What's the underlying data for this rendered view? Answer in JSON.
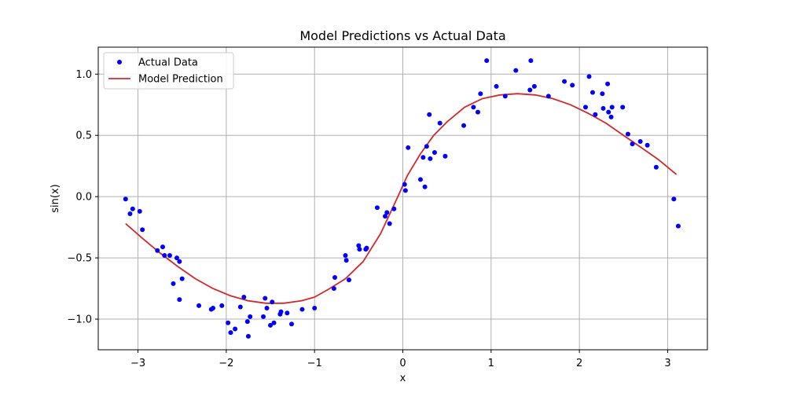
{
  "chart_data": {
    "type": "scatter",
    "title": "Model Predictions vs Actual Data",
    "xlabel": "x",
    "ylabel": "sin(x)",
    "xlim": [
      -3.45,
      3.45
    ],
    "ylim": [
      -1.25,
      1.22
    ],
    "xticks": [
      -3,
      -2,
      -1,
      0,
      1,
      2,
      3
    ],
    "xtick_labels": [
      "−3",
      "−2",
      "−1",
      "0",
      "1",
      "2",
      "3"
    ],
    "yticks": [
      -1.0,
      -0.5,
      0.0,
      0.5,
      1.0
    ],
    "ytick_labels": [
      "−1.0",
      "−0.5",
      "0.0",
      "0.5",
      "1.0"
    ],
    "grid": true,
    "legend_position": "top-left",
    "colors": {
      "actual": "#0000ff",
      "model": "#d62728",
      "grid": "#b0b0b0",
      "axes": "#000000"
    },
    "series": [
      {
        "name": "Actual Data",
        "kind": "scatter",
        "x": [
          -3.14,
          -3.09,
          -3.06,
          -2.98,
          -2.95,
          -2.78,
          -2.72,
          -2.7,
          -2.64,
          -2.6,
          -2.56,
          -2.53,
          -2.53,
          -2.5,
          -2.31,
          -2.17,
          -2.15,
          -2.05,
          -1.98,
          -1.95,
          -1.9,
          -1.84,
          -1.8,
          -1.76,
          -1.75,
          -1.73,
          -1.58,
          -1.56,
          -1.54,
          -1.5,
          -1.48,
          -1.46,
          -1.39,
          -1.38,
          -1.31,
          -1.26,
          -1.14,
          -1.0,
          -0.78,
          -0.77,
          -0.65,
          -0.64,
          -0.61,
          -0.5,
          -0.49,
          -0.42,
          -0.41,
          -0.29,
          -0.2,
          -0.18,
          -0.15,
          -0.1,
          0.02,
          0.03,
          0.06,
          0.2,
          0.23,
          0.25,
          0.27,
          0.3,
          0.31,
          0.36,
          0.42,
          0.48,
          0.69,
          0.8,
          0.85,
          0.88,
          0.95,
          1.06,
          1.16,
          1.28,
          1.44,
          1.45,
          1.49,
          1.65,
          1.83,
          1.92,
          2.07,
          2.11,
          2.15,
          2.18,
          2.26,
          2.27,
          2.32,
          2.33,
          2.36,
          2.37,
          2.49,
          2.55,
          2.6,
          2.69,
          2.77,
          2.87,
          3.07,
          3.12
        ],
        "y": [
          -0.02,
          -0.14,
          -0.1,
          -0.12,
          -0.27,
          -0.44,
          -0.41,
          -0.48,
          -0.48,
          -0.71,
          -0.5,
          -0.53,
          -0.84,
          -0.67,
          -0.89,
          -0.92,
          -0.91,
          -0.89,
          -1.03,
          -1.11,
          -1.08,
          -0.9,
          -0.82,
          -1.02,
          -1.14,
          -0.98,
          -0.98,
          -0.83,
          -0.91,
          -1.05,
          -0.86,
          -1.03,
          -0.96,
          -0.94,
          -0.95,
          -1.04,
          -0.92,
          -0.91,
          -0.75,
          -0.66,
          -0.48,
          -0.52,
          -0.68,
          -0.4,
          -0.43,
          -0.43,
          -0.42,
          -0.09,
          -0.16,
          -0.13,
          -0.22,
          -0.1,
          0.1,
          0.05,
          0.4,
          0.14,
          0.32,
          0.08,
          0.41,
          0.67,
          0.31,
          0.36,
          0.6,
          0.33,
          0.58,
          0.73,
          0.69,
          0.84,
          1.11,
          0.9,
          0.82,
          1.03,
          0.87,
          1.11,
          0.9,
          0.82,
          0.94,
          0.91,
          0.73,
          0.98,
          0.85,
          0.67,
          0.84,
          0.72,
          0.92,
          0.69,
          0.65,
          0.73,
          0.73,
          0.51,
          0.43,
          0.45,
          0.42,
          0.24,
          -0.02,
          -0.24
        ]
      },
      {
        "name": "Model Prediction",
        "kind": "line",
        "x": [
          -3.14,
          -2.95,
          -2.75,
          -2.55,
          -2.35,
          -2.15,
          -1.95,
          -1.75,
          -1.55,
          -1.35,
          -1.15,
          -1.0,
          -0.85,
          -0.65,
          -0.45,
          -0.25,
          -0.05,
          0.05,
          0.2,
          0.35,
          0.5,
          0.7,
          0.9,
          1.1,
          1.3,
          1.5,
          1.7,
          1.9,
          2.1,
          2.3,
          2.5,
          2.7,
          2.9,
          3.1
        ],
        "y": [
          -0.22,
          -0.34,
          -0.46,
          -0.57,
          -0.67,
          -0.75,
          -0.81,
          -0.85,
          -0.87,
          -0.87,
          -0.85,
          -0.82,
          -0.76,
          -0.67,
          -0.53,
          -0.3,
          0.01,
          0.17,
          0.35,
          0.5,
          0.61,
          0.73,
          0.8,
          0.83,
          0.84,
          0.83,
          0.8,
          0.75,
          0.68,
          0.6,
          0.5,
          0.4,
          0.3,
          0.18
        ]
      }
    ]
  }
}
